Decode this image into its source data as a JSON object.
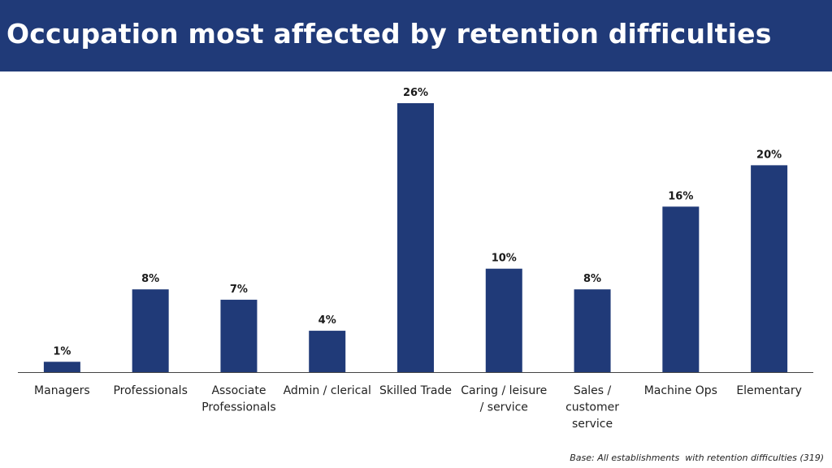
{
  "header": {
    "title": "Occupation most affected by retention difficulties"
  },
  "footnote": "Base: All establishments  with retention difficulties (319)",
  "colors": {
    "header_bg": "#203a78",
    "bar": "#203a78",
    "axis": "#444444"
  },
  "chart_data": {
    "type": "bar",
    "title": "Occupation most affected by retention difficulties",
    "xlabel": "",
    "ylabel": "",
    "unit": "%",
    "categories": [
      [
        "Managers"
      ],
      [
        "Professionals"
      ],
      [
        "Associate",
        "Professionals"
      ],
      [
        "Admin / clerical"
      ],
      [
        "Skilled Trade"
      ],
      [
        "Caring / leisure",
        "/ service"
      ],
      [
        "Sales /",
        "customer",
        "service"
      ],
      [
        "Machine Ops"
      ],
      [
        "Elementary"
      ]
    ],
    "values": [
      1,
      8,
      7,
      4,
      26,
      10,
      8,
      16,
      20
    ],
    "value_labels": [
      "1%",
      "8%",
      "7%",
      "4%",
      "26%",
      "10%",
      "8%",
      "16%",
      "20%"
    ],
    "ylim": [
      0,
      26
    ],
    "grid": false,
    "legend": "none"
  }
}
